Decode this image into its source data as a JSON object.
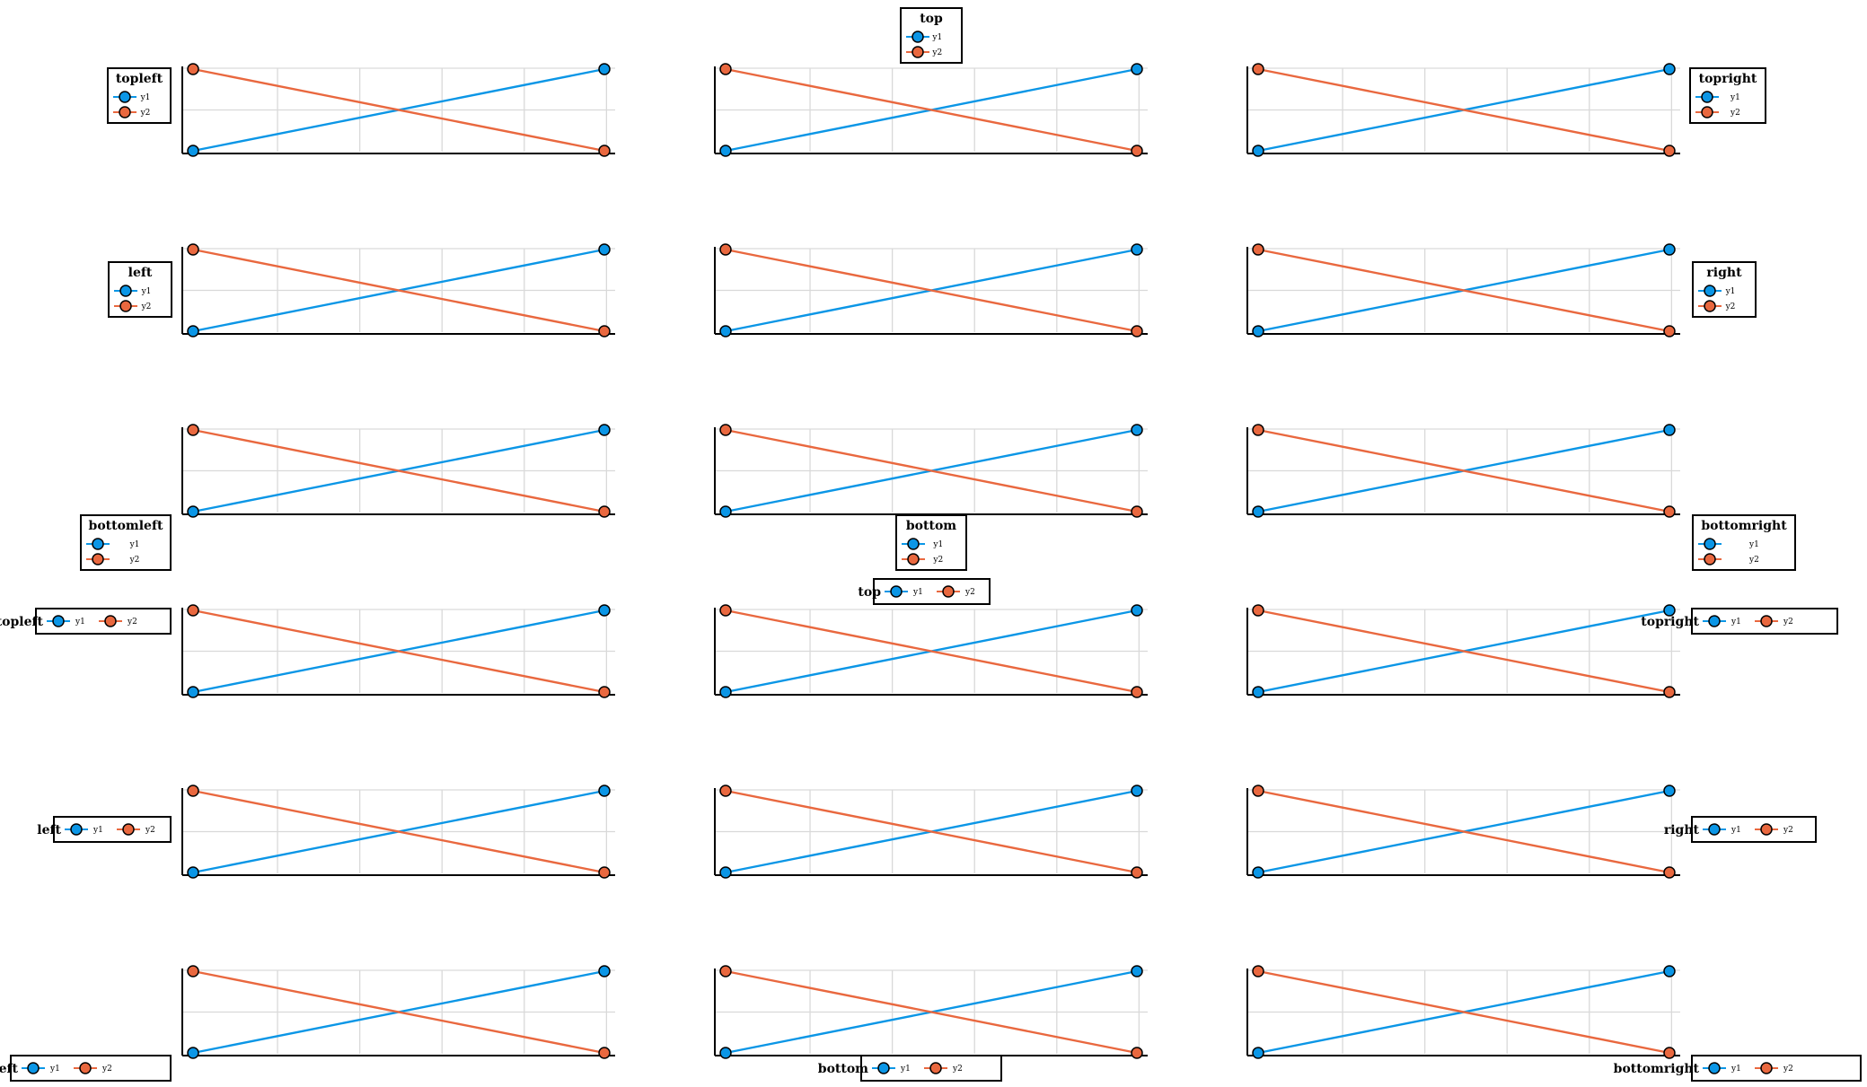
{
  "colors": {
    "y1": "#0b96e6",
    "y2": "#e9683f"
  },
  "chart_data": {
    "type": "line",
    "grid": true,
    "x": [
      1,
      2
    ],
    "series": [
      {
        "name": "y1",
        "values": [
          1,
          2
        ]
      },
      {
        "name": "y2",
        "values": [
          2,
          1
        ]
      }
    ],
    "panels": [
      {
        "legend": {
          "title": "topleft",
          "position": "topleft",
          "orientation": "vertical"
        }
      },
      {
        "legend": {
          "title": "top",
          "position": "top",
          "orientation": "vertical"
        }
      },
      {
        "legend": {
          "title": "topright",
          "position": "topright",
          "orientation": "vertical"
        }
      },
      {
        "legend": {
          "title": "left",
          "position": "left",
          "orientation": "vertical"
        }
      },
      {
        "legend": {
          "title": "",
          "position": "inside",
          "orientation": "none"
        }
      },
      {
        "legend": {
          "title": "right",
          "position": "right",
          "orientation": "vertical"
        }
      },
      {
        "legend": {
          "title": "bottomleft",
          "position": "bottomleft",
          "orientation": "vertical"
        }
      },
      {
        "legend": {
          "title": "bottom",
          "position": "bottom",
          "orientation": "vertical"
        }
      },
      {
        "legend": {
          "title": "bottomright",
          "position": "bottomright",
          "orientation": "vertical"
        }
      },
      {
        "legend": {
          "title": "topleft",
          "position": "topleft",
          "orientation": "horizontal"
        }
      },
      {
        "legend": {
          "title": "top",
          "position": "top",
          "orientation": "horizontal"
        }
      },
      {
        "legend": {
          "title": "topright",
          "position": "topright",
          "orientation": "horizontal"
        }
      },
      {
        "legend": {
          "title": "left",
          "position": "left",
          "orientation": "horizontal"
        }
      },
      {
        "legend": {
          "title": "",
          "position": "inside",
          "orientation": "none"
        }
      },
      {
        "legend": {
          "title": "right",
          "position": "right",
          "orientation": "horizontal"
        }
      },
      {
        "legend": {
          "title": "bottomleft",
          "position": "bottomleft",
          "orientation": "horizontal"
        }
      },
      {
        "legend": {
          "title": "bottom",
          "position": "bottom",
          "orientation": "horizontal"
        }
      },
      {
        "legend": {
          "title": "bottomright",
          "position": "bottomright",
          "orientation": "horizontal"
        }
      }
    ]
  }
}
